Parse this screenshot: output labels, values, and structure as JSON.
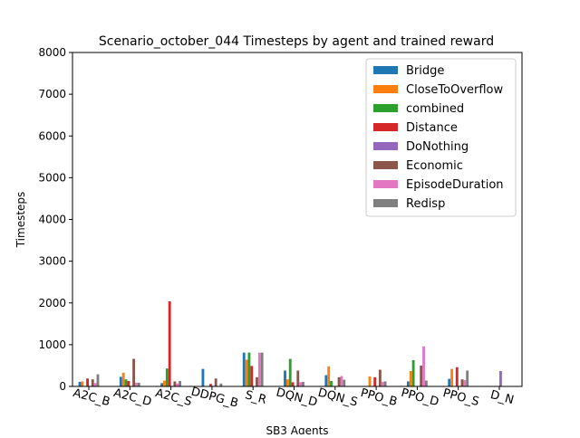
{
  "chart_data": {
    "type": "bar",
    "title": "Scenario_october_044 Timesteps by agent and trained reward",
    "xlabel": "SB3 Agents",
    "ylabel": "Timesteps",
    "ylim": [
      0,
      8000
    ],
    "yticks": [
      0,
      1000,
      2000,
      3000,
      4000,
      5000,
      6000,
      7000,
      8000
    ],
    "legend_position": "upper right",
    "grid": false,
    "categories": [
      "A2C_B",
      "A2C_D",
      "A2C_S",
      "DDPG_B",
      "S_R",
      "DQN_D",
      "DQN_S",
      "PPO_B",
      "PPO_D",
      "PPO_S",
      "D_N"
    ],
    "series": [
      {
        "name": "Bridge",
        "color": "#1f77b4",
        "values": [
          110,
          230,
          80,
          420,
          810,
          380,
          270,
          0,
          120,
          180,
          0
        ]
      },
      {
        "name": "CloseToOverflow",
        "color": "#ff7f0e",
        "values": [
          120,
          330,
          140,
          0,
          640,
          170,
          480,
          240,
          370,
          420,
          0
        ]
      },
      {
        "name": "combined",
        "color": "#2ca02c",
        "values": [
          0,
          170,
          430,
          0,
          810,
          660,
          130,
          0,
          630,
          0,
          0
        ]
      },
      {
        "name": "Distance",
        "color": "#d62728",
        "values": [
          190,
          130,
          2040,
          60,
          490,
          100,
          0,
          220,
          0,
          460,
          0
        ]
      },
      {
        "name": "DoNothing",
        "color": "#9467bd",
        "values": [
          0,
          0,
          0,
          0,
          0,
          0,
          0,
          0,
          0,
          0,
          370
        ]
      },
      {
        "name": "Economic",
        "color": "#8c564b",
        "values": [
          170,
          660,
          120,
          190,
          220,
          380,
          220,
          400,
          500,
          170,
          0
        ]
      },
      {
        "name": "EpisodeDuration",
        "color": "#e377c2",
        "values": [
          80,
          90,
          70,
          0,
          810,
          100,
          250,
          110,
          960,
          150,
          0
        ]
      },
      {
        "name": "Redisp",
        "color": "#7f7f7f",
        "values": [
          290,
          90,
          130,
          70,
          810,
          110,
          160,
          120,
          140,
          380,
          0
        ]
      }
    ]
  }
}
